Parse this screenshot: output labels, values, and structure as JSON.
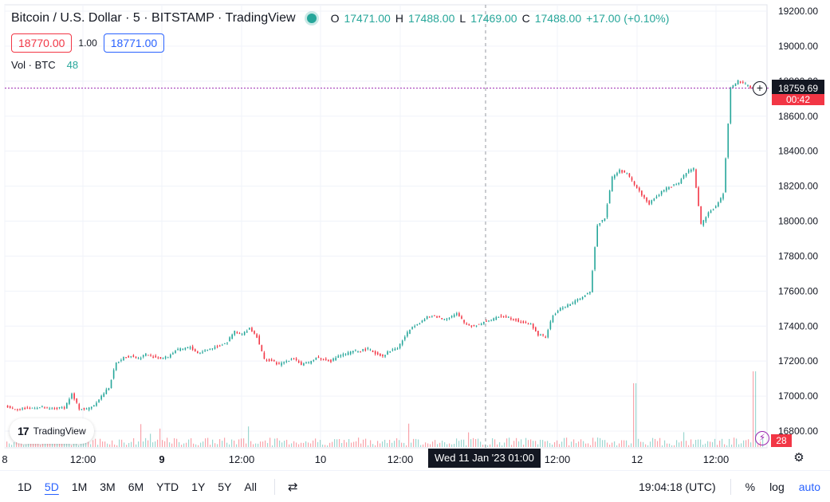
{
  "header": {
    "title": "Bitcoin / U.S. Dollar · 5 · BITSTAMP · TradingView",
    "ohlc": {
      "o_key": "O",
      "o_val": "17471.00",
      "h_key": "H",
      "h_val": "17488.00",
      "l_key": "L",
      "l_val": "17469.00",
      "c_key": "C",
      "c_val": "17488.00",
      "change": "+17.00 (+0.10%)"
    },
    "sell_price": "18770.00",
    "spread": "1.00",
    "buy_price": "18771.00",
    "volume_label": "Vol · BTC",
    "volume_value": "48"
  },
  "logo": {
    "text": "TradingView",
    "mark": "17"
  },
  "crosshair": {
    "time_label": "Wed 11 Jan '23   01:00",
    "price_label": "18759.69"
  },
  "countdown": "00:42",
  "volume_badge": "28",
  "icons": {
    "plus": "+",
    "alert": "⚡",
    "gear": "⚙",
    "range": "⇄"
  },
  "colors": {
    "up": "#26a69a",
    "down": "#f23645",
    "accent": "#2962ff",
    "crosshair": "#9598a1"
  },
  "chart_data": {
    "type": "line",
    "instrument": "Bitcoin / U.S. Dollar",
    "interval": "5",
    "exchange": "BITSTAMP",
    "y_ticks": [
      "19200.00",
      "19000.00",
      "18800.00",
      "18600.00",
      "18400.00",
      "18200.00",
      "18000.00",
      "17800.00",
      "17600.00",
      "17400.00",
      "17200.00",
      "17000.00",
      "16800.00"
    ],
    "x_ticks": [
      "8",
      "12:00",
      "9",
      "12:00",
      "10",
      "12:00",
      "12:00",
      "12",
      "12:00"
    ],
    "x_ticks_bold": [
      false,
      false,
      true,
      false,
      false,
      false,
      false,
      false,
      false
    ],
    "ylim": [
      16750,
      19200
    ],
    "price_series_sampled": [
      16945,
      16930,
      16925,
      16930,
      16935,
      16935,
      16925,
      16930,
      16935,
      17010,
      16930,
      16925,
      16950,
      17000,
      17050,
      17190,
      17220,
      17230,
      17215,
      17240,
      17225,
      17215,
      17225,
      17260,
      17270,
      17280,
      17245,
      17260,
      17275,
      17290,
      17310,
      17370,
      17350,
      17390,
      17340,
      17210,
      17200,
      17180,
      17200,
      17220,
      17180,
      17190,
      17220,
      17210,
      17200,
      17230,
      17240,
      17255,
      17260,
      17270,
      17245,
      17230,
      17260,
      17275,
      17340,
      17400,
      17420,
      17450,
      17460,
      17440,
      17450,
      17470,
      17420,
      17400,
      17410,
      17430,
      17440,
      17460,
      17450,
      17435,
      17420,
      17410,
      17350,
      17340,
      17460,
      17500,
      17520,
      17540,
      17570,
      17590,
      17980,
      18020,
      18250,
      18290,
      18270,
      18210,
      18150,
      18100,
      18140,
      18180,
      18200,
      18220,
      18280,
      18300,
      17980,
      18050,
      18080,
      18160,
      18760,
      18800,
      18780,
      18760,
      18759.69
    ]
  },
  "toolbar": {
    "periods": [
      "1D",
      "5D",
      "1M",
      "3M",
      "6M",
      "YTD",
      "1Y",
      "5Y",
      "All"
    ],
    "active_period": "5D",
    "clock": "19:04:18 (UTC)",
    "percent": "%",
    "log": "log",
    "auto": "auto"
  }
}
